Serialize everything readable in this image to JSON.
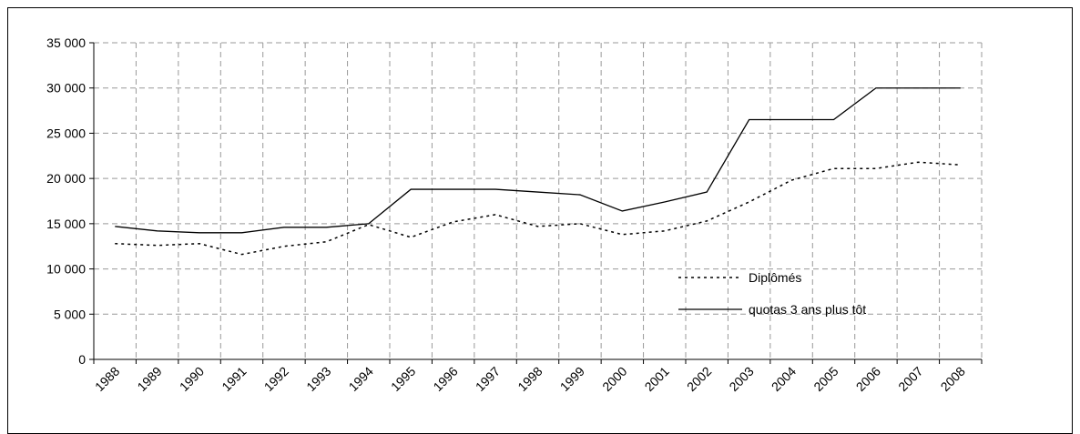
{
  "chart_data": {
    "type": "line",
    "categories": [
      "1988",
      "1989",
      "1990",
      "1991",
      "1992",
      "1993",
      "1994",
      "1995",
      "1996",
      "1997",
      "1998",
      "1999",
      "2000",
      "2001",
      "2002",
      "2003",
      "2004",
      "2005",
      "2006",
      "2007",
      "2008"
    ],
    "series": [
      {
        "name": "Diplômés",
        "color": "#000000",
        "dash": "dotted",
        "values": [
          12800,
          12600,
          12800,
          11600,
          12500,
          13000,
          14900,
          13500,
          15200,
          16000,
          14700,
          15000,
          13800,
          14200,
          15300,
          17400,
          19800,
          21100,
          21100,
          21800,
          21500
        ]
      },
      {
        "name": "quotas 3 ans plus tôt",
        "color": "#000000",
        "dash": "solid",
        "values": [
          14700,
          14200,
          14000,
          14000,
          14600,
          14600,
          15000,
          18800,
          18800,
          18800,
          18500,
          18200,
          16400,
          17400,
          18500,
          26500,
          26500,
          26500,
          30000,
          30000,
          30000
        ]
      }
    ],
    "ylim": [
      0,
      35000
    ],
    "yticks": [
      0,
      {
        "value": 5000,
        "label": "5 000"
      },
      {
        "value": 10000,
        "label": "10 000"
      },
      {
        "value": 15000,
        "label": "15 000"
      },
      {
        "value": 20000,
        "label": "20 000"
      },
      {
        "value": 25000,
        "label": "25 000"
      },
      {
        "value": 30000,
        "label": "30 000"
      },
      {
        "value": 35000,
        "label": "35 000"
      }
    ],
    "grid": true
  }
}
